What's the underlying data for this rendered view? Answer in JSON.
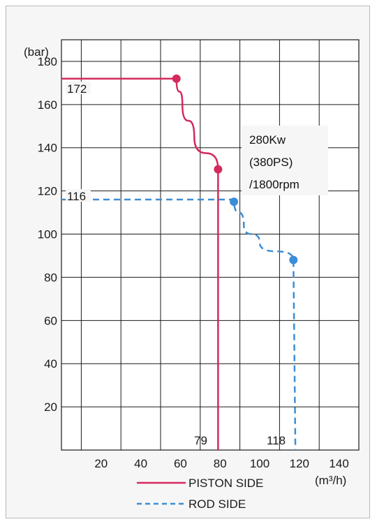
{
  "chart_data": {
    "type": "line",
    "ylabel": "(bar)",
    "xlabel": "(m³/h)",
    "xlim": [
      0,
      150
    ],
    "ylim": [
      0,
      190
    ],
    "x_ticks": [
      20,
      40,
      60,
      80,
      100,
      120,
      140
    ],
    "y_ticks": [
      20,
      40,
      60,
      80,
      100,
      120,
      140,
      160,
      180
    ],
    "grid": true,
    "annotation": [
      "280Kw",
      "(380PS)",
      "/1800rpm"
    ],
    "point_labels": {
      "piston_pressure": "172",
      "rod_pressure": "116",
      "piston_flow": "79",
      "rod_flow": "118"
    },
    "series": [
      {
        "name": "PISTON SIDE",
        "color": "#d42a5c",
        "style": "solid",
        "points": [
          [
            0,
            172
          ],
          [
            58,
            172
          ],
          [
            61,
            160
          ],
          [
            67,
            145
          ],
          [
            79,
            130
          ],
          [
            79,
            0
          ]
        ],
        "markers": [
          [
            58,
            172
          ],
          [
            79,
            130
          ]
        ]
      },
      {
        "name": "ROD SIDE",
        "color": "#3b8ed6",
        "style": "dashed",
        "points": [
          [
            0,
            116
          ],
          [
            87,
            116
          ],
          [
            92,
            104
          ],
          [
            100,
            96
          ],
          [
            117,
            88
          ],
          [
            118,
            0
          ]
        ],
        "markers": [
          [
            87,
            115
          ],
          [
            117,
            88
          ]
        ]
      }
    ],
    "legend_position": "bottom"
  }
}
